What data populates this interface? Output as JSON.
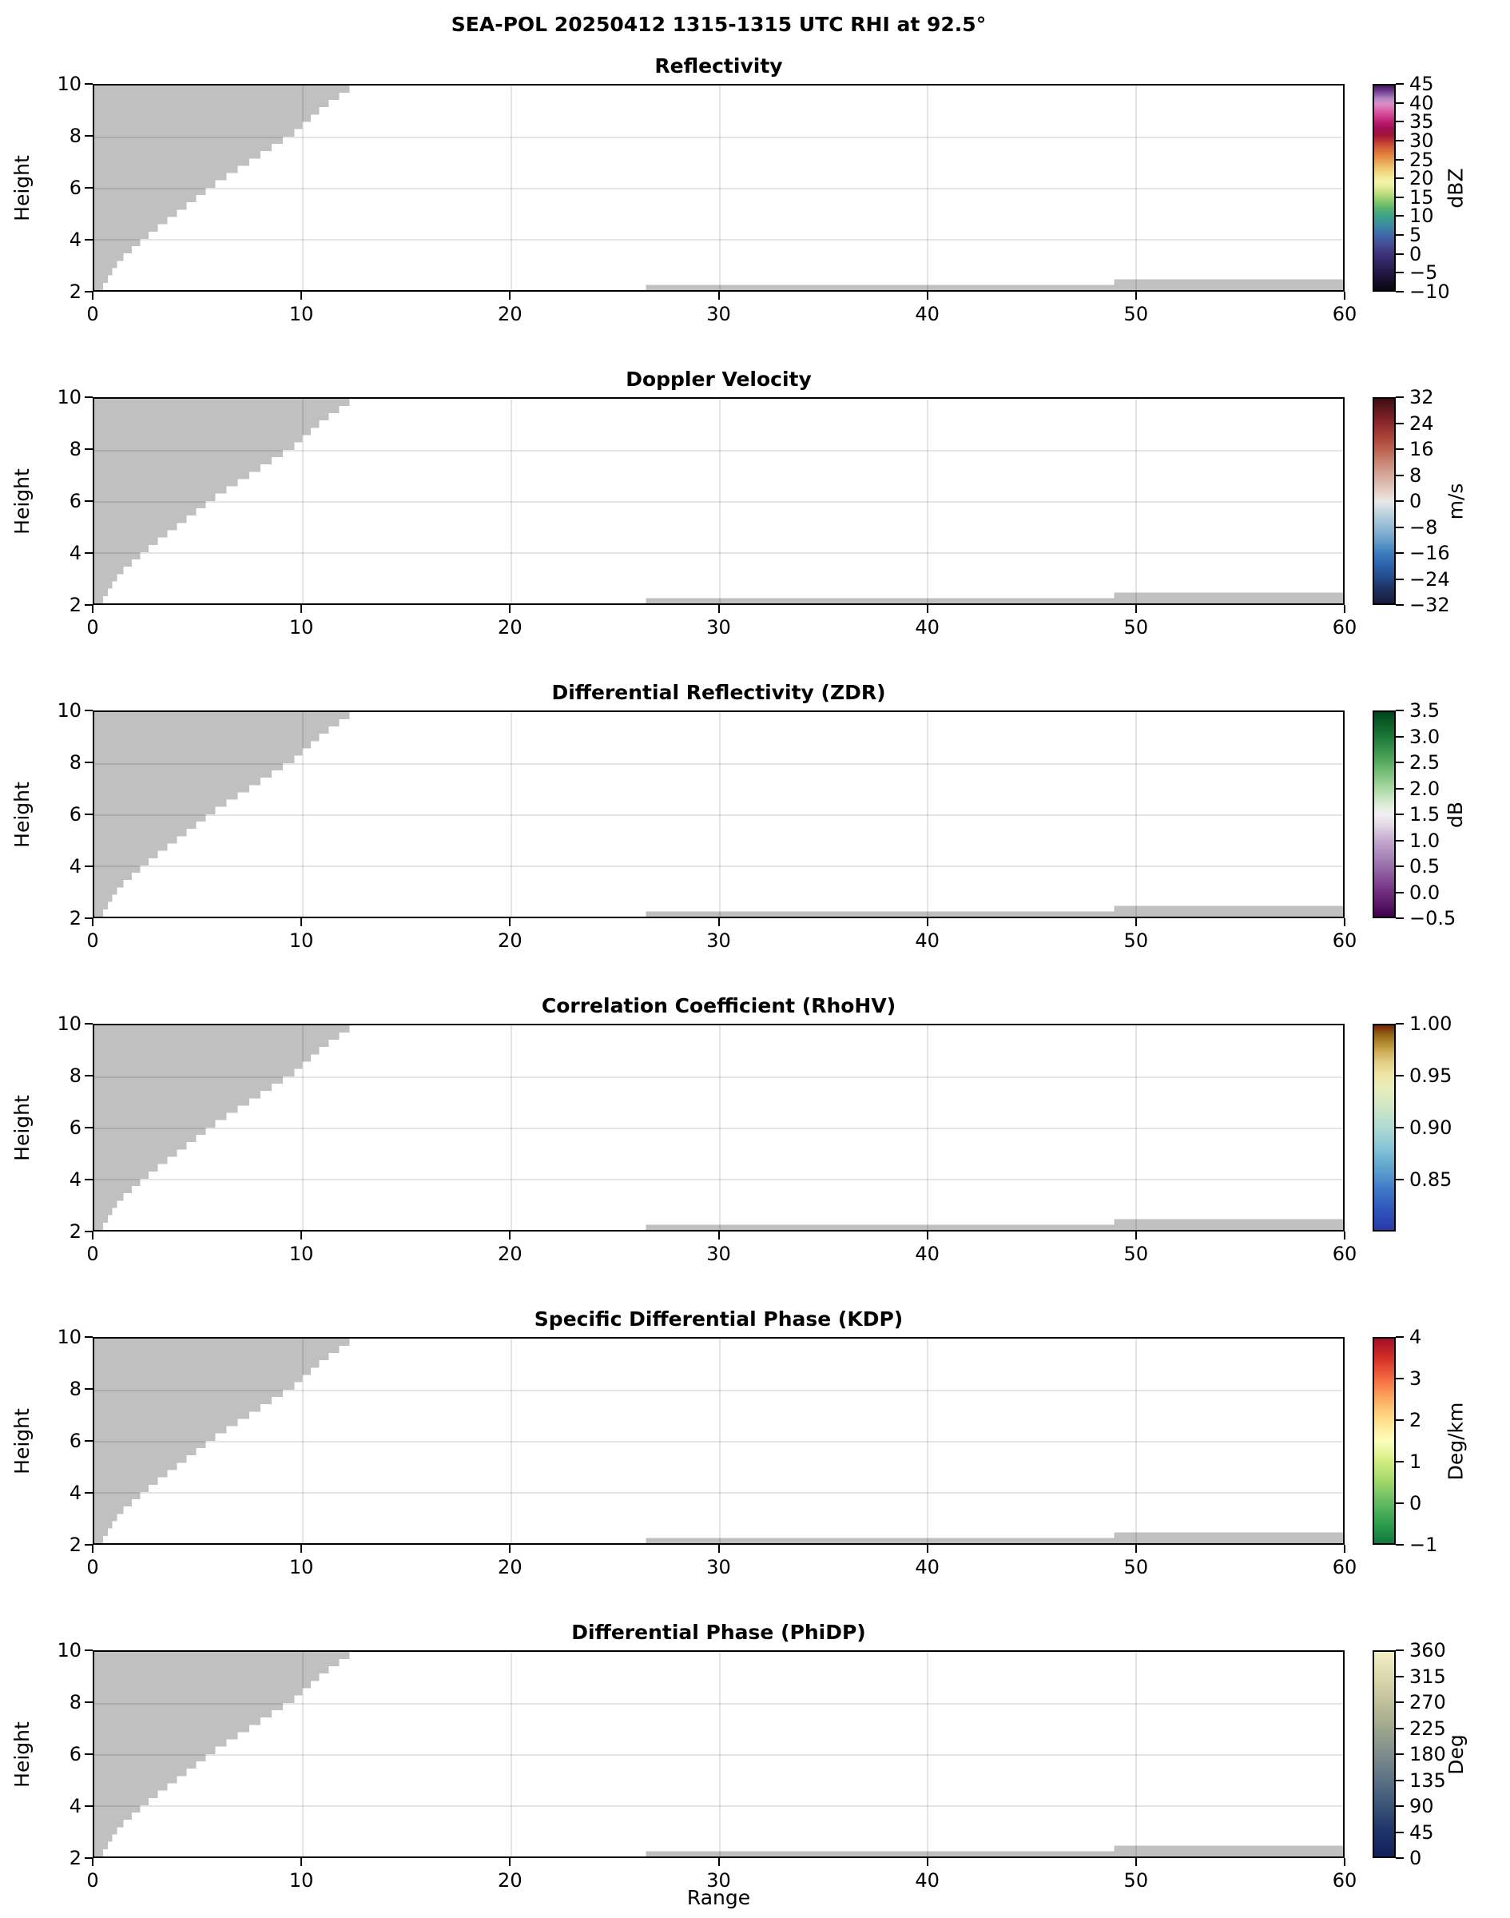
{
  "chart_data": {
    "type": "heatmap",
    "suptitle": "SEA-POL 20250412 1315-1315 UTC RHI at 92.5°",
    "axes": {
      "xlabel": "Range",
      "ylabel": "Height",
      "x_min": 0,
      "x_max": 60,
      "x_ticks": [
        0,
        10,
        20,
        30,
        40,
        50,
        60
      ],
      "x_tick_labels": [
        "0",
        "10",
        "20",
        "30",
        "40",
        "50",
        "60"
      ],
      "y_min": 2,
      "y_max": 10,
      "y_ticks": [
        2,
        4,
        6,
        8,
        10
      ],
      "y_tick_labels": [
        "2",
        "4",
        "6",
        "8",
        "10"
      ],
      "grid": true
    },
    "no_data_color": "#c0c0c0",
    "no_data_regions": {
      "wedge_edge_points": [
        [
          2,
          0.42
        ],
        [
          3,
          1.2
        ],
        [
          4,
          2.6
        ],
        [
          5,
          4.2
        ],
        [
          6,
          5.8
        ],
        [
          7,
          7.7
        ],
        [
          8,
          9.6
        ],
        [
          9,
          11.0
        ],
        [
          10,
          12.75
        ]
      ],
      "wedge_step_height": 0.286,
      "bottom_strips": [
        {
          "x0": 26.5,
          "x1": 49.0,
          "y0": 2.0,
          "y1": 2.2
        },
        {
          "x0": 49.0,
          "x1": 60.0,
          "y0": 2.0,
          "y1": 2.42
        }
      ]
    },
    "panels": [
      {
        "title": "Reflectivity",
        "colorbar": {
          "units": "dBZ",
          "vmin": -10,
          "vmax": 45,
          "ticks": [
            -10,
            -5,
            0,
            5,
            10,
            15,
            20,
            25,
            30,
            35,
            40,
            45
          ],
          "tick_labels": [
            "−10",
            "−5",
            "0",
            "5",
            "10",
            "15",
            "20",
            "25",
            "30",
            "35",
            "40",
            "45"
          ],
          "gradient": [
            [
              0,
              "#0a0610"
            ],
            [
              0.045,
              "#160f2b"
            ],
            [
              0.09,
              "#251948"
            ],
            [
              0.136,
              "#322663"
            ],
            [
              0.18,
              "#3d347d"
            ],
            [
              0.227,
              "#444e97"
            ],
            [
              0.27,
              "#4168ab"
            ],
            [
              0.318,
              "#3a8da2"
            ],
            [
              0.364,
              "#3ba285"
            ],
            [
              0.4,
              "#58b56e"
            ],
            [
              0.43,
              "#82c56a"
            ],
            [
              0.465,
              "#b5da79"
            ],
            [
              0.5,
              "#e0eb94"
            ],
            [
              0.527,
              "#f4f3ab"
            ],
            [
              0.555,
              "#f3e795"
            ],
            [
              0.59,
              "#efcd75"
            ],
            [
              0.625,
              "#eaa855"
            ],
            [
              0.66,
              "#e4823f"
            ],
            [
              0.7,
              "#d25936"
            ],
            [
              0.727,
              "#bc3732"
            ],
            [
              0.755,
              "#a21539"
            ],
            [
              0.79,
              "#a20e52"
            ],
            [
              0.818,
              "#b91a6c"
            ],
            [
              0.85,
              "#cf3c8e"
            ],
            [
              0.88,
              "#dc64aa"
            ],
            [
              0.91,
              "#da8dc3"
            ],
            [
              0.935,
              "#b287c5"
            ],
            [
              0.965,
              "#7c4b9c"
            ],
            [
              1,
              "#421560"
            ]
          ]
        }
      },
      {
        "title": "Doppler Velocity",
        "colorbar": {
          "units": "m/s",
          "vmin": -32,
          "vmax": 32,
          "ticks": [
            -32,
            -24,
            -16,
            -8,
            0,
            8,
            16,
            24,
            32
          ],
          "tick_labels": [
            "−32",
            "−24",
            "−16",
            "−8",
            "0",
            "8",
            "16",
            "24",
            "32"
          ],
          "gradient": [
            [
              0,
              "#181c3c"
            ],
            [
              0.07,
              "#1e3160"
            ],
            [
              0.125,
              "#224a87"
            ],
            [
              0.19,
              "#2c63ae"
            ],
            [
              0.25,
              "#3d7fc0"
            ],
            [
              0.31,
              "#6aa0c9"
            ],
            [
              0.375,
              "#94bbd5"
            ],
            [
              0.44,
              "#bdd4de"
            ],
            [
              0.485,
              "#dde4e6"
            ],
            [
              0.5,
              "#eae9e8"
            ],
            [
              0.515,
              "#e9dfda"
            ],
            [
              0.56,
              "#e2c8be"
            ],
            [
              0.625,
              "#d6a99b"
            ],
            [
              0.69,
              "#ca8675"
            ],
            [
              0.75,
              "#bd6352"
            ],
            [
              0.81,
              "#ab4339"
            ],
            [
              0.875,
              "#8f292c"
            ],
            [
              0.94,
              "#641a1f"
            ],
            [
              1,
              "#3d0d13"
            ]
          ]
        }
      },
      {
        "title": "Differential Reflectivity (ZDR)",
        "colorbar": {
          "units": "dB",
          "vmin": -0.5,
          "vmax": 3.5,
          "ticks": [
            -0.5,
            0,
            0.5,
            1,
            1.5,
            2,
            2.5,
            3,
            3.5
          ],
          "tick_labels": [
            "−0.5",
            "0.0",
            "0.5",
            "1.0",
            "1.5",
            "2.0",
            "2.5",
            "3.0",
            "3.5"
          ],
          "gradient": [
            [
              0,
              "#40004b"
            ],
            [
              0.125,
              "#732f83"
            ],
            [
              0.25,
              "#9970ab"
            ],
            [
              0.375,
              "#c6abd3"
            ],
            [
              0.46,
              "#e8dee9"
            ],
            [
              0.5,
              "#f1eff2"
            ],
            [
              0.54,
              "#e1eedc"
            ],
            [
              0.625,
              "#abd9a4"
            ],
            [
              0.75,
              "#5bae61"
            ],
            [
              0.875,
              "#1c7a38"
            ],
            [
              1,
              "#00441b"
            ]
          ]
        }
      },
      {
        "title": "Correlation Coefficient (RhoHV)",
        "colorbar": {
          "units": "",
          "vmin": 0.8,
          "vmax": 1.0,
          "ticks": [
            0.85,
            0.9,
            0.95,
            1.0
          ],
          "tick_labels": [
            "0.85",
            "0.90",
            "0.95",
            "1.00"
          ],
          "gradient": [
            [
              0,
              "#2a3aa8"
            ],
            [
              0.1,
              "#2f55bd"
            ],
            [
              0.2,
              "#3f7ac7"
            ],
            [
              0.3,
              "#5ea3cf"
            ],
            [
              0.4,
              "#86c4d6"
            ],
            [
              0.5,
              "#aedad2"
            ],
            [
              0.6,
              "#cfe7c6"
            ],
            [
              0.7,
              "#e9edb9"
            ],
            [
              0.76,
              "#eee4a5"
            ],
            [
              0.82,
              "#e2cd85"
            ],
            [
              0.87,
              "#cfae58"
            ],
            [
              0.91,
              "#b58c33"
            ],
            [
              0.95,
              "#97681b"
            ],
            [
              0.98,
              "#7f3f0a"
            ],
            [
              1,
              "#731f04"
            ]
          ]
        }
      },
      {
        "title": "Specific Differential Phase (KDP)",
        "colorbar": {
          "units": "Deg/km",
          "vmin": -1,
          "vmax": 4,
          "ticks": [
            -1,
            0,
            1,
            2,
            3,
            4
          ],
          "tick_labels": [
            "−1",
            "0",
            "1",
            "2",
            "3",
            "4"
          ],
          "gradient": [
            [
              0,
              "#12793f"
            ],
            [
              0.1,
              "#2f9e4e"
            ],
            [
              0.2,
              "#63bc61"
            ],
            [
              0.3,
              "#a0d669"
            ],
            [
              0.4,
              "#d2ed82"
            ],
            [
              0.5,
              "#fefebd"
            ],
            [
              0.6,
              "#fee08b"
            ],
            [
              0.7,
              "#fdae61"
            ],
            [
              0.8,
              "#f46d43"
            ],
            [
              0.9,
              "#d73027"
            ],
            [
              1,
              "#a50f26"
            ]
          ]
        }
      },
      {
        "title": "Differential Phase (PhiDP)",
        "colorbar": {
          "units": "Deg",
          "vmin": 0,
          "vmax": 360,
          "ticks": [
            0,
            45,
            90,
            135,
            180,
            225,
            270,
            315,
            360
          ],
          "tick_labels": [
            "0",
            "45",
            "90",
            "135",
            "180",
            "225",
            "270",
            "315",
            "360"
          ],
          "gradient": [
            [
              0,
              "#13205c"
            ],
            [
              0.125,
              "#1f3468"
            ],
            [
              0.25,
              "#3a5578"
            ],
            [
              0.375,
              "#5b7186"
            ],
            [
              0.5,
              "#7e8c8c"
            ],
            [
              0.625,
              "#9ea78c"
            ],
            [
              0.75,
              "#bfbf9a"
            ],
            [
              0.875,
              "#dcd8ae"
            ],
            [
              1,
              "#f4efc6"
            ]
          ]
        }
      }
    ]
  }
}
